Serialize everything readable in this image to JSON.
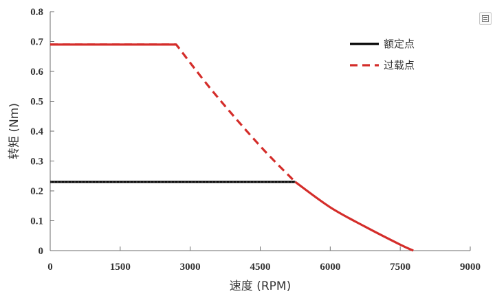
{
  "chart_data": {
    "type": "line",
    "title": "",
    "xlabel": "速度 (RPM)",
    "ylabel": "转矩 (Nm)",
    "xlim": [
      0,
      9000
    ],
    "ylim": [
      0,
      0.8
    ],
    "xticks": [
      0,
      1500,
      3000,
      4500,
      6000,
      7500,
      9000
    ],
    "yticks": [
      0,
      0.1,
      0.2,
      0.3,
      0.4,
      0.5,
      0.6,
      0.7,
      0.8
    ],
    "ytick_labels": [
      "0",
      "0.1",
      "0.2",
      "0.3",
      "0.4",
      "0.5",
      "0.6",
      "0.7",
      "0.8"
    ],
    "grid": false,
    "legend_position": "top-right",
    "series": [
      {
        "name": "额定点",
        "color": "#000000",
        "style": "solid",
        "x": [
          0,
          5250
        ],
        "y": [
          0.23,
          0.23
        ]
      },
      {
        "name": "过载点",
        "color": "#d42d2a",
        "style": "dashed",
        "x": [
          0,
          2700,
          3500,
          4500,
          5250
        ],
        "y": [
          0.69,
          0.69,
          0.53,
          0.35,
          0.23
        ]
      },
      {
        "name": "",
        "color": "#d42d2a",
        "style": "solid",
        "x": [
          5250,
          6000,
          6750,
          7500,
          7780
        ],
        "y": [
          0.23,
          0.145,
          0.08,
          0.02,
          0
        ]
      }
    ]
  },
  "ui": {
    "corner_icon": "table-view-icon"
  }
}
